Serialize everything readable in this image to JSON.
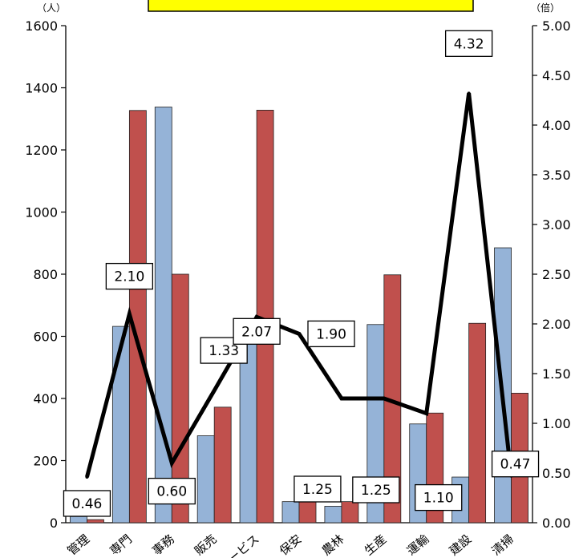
{
  "chart_data": {
    "type": "bar",
    "title": "",
    "left_axis": {
      "unit": "（人）",
      "min": 0,
      "max": 1600,
      "step": 200,
      "ticks": [
        "0",
        "200",
        "400",
        "600",
        "800",
        "1000",
        "1200",
        "1400",
        "1600"
      ]
    },
    "right_axis": {
      "unit": "（倍）",
      "min": 0,
      "max": 5,
      "step": 0.5,
      "ticks": [
        "0.00",
        "0.50",
        "1.00",
        "1.50",
        "2.00",
        "2.50",
        "3.00",
        "3.50",
        "4.00",
        "4.50",
        "5.00"
      ]
    },
    "categories": [
      "管理",
      "専門",
      "事務",
      "販売",
      "サービス",
      "保安",
      "農林",
      "生産",
      "運輸",
      "建設",
      "清掃"
    ],
    "series": [
      {
        "type": "bar",
        "axis": "left",
        "color": "#95B3D7",
        "values": [
          20,
          632,
          1338,
          280,
          641,
          68,
          53,
          638,
          318,
          147,
          885
        ]
      },
      {
        "type": "bar",
        "axis": "left",
        "color": "#C0504D",
        "values": [
          10,
          1327,
          800,
          372,
          1328,
          133,
          68,
          798,
          353,
          642,
          417
        ]
      },
      {
        "type": "line",
        "axis": "right",
        "color": "#000000",
        "values": [
          0.46,
          2.1,
          0.6,
          1.33,
          2.07,
          1.9,
          1.25,
          1.25,
          1.1,
          4.32,
          0.47
        ],
        "labels": [
          "0.46",
          "2.10",
          "0.60",
          "1.33",
          "2.07",
          "1.90",
          "1.25",
          "1.25",
          "1.10",
          "4.32",
          "0.47"
        ]
      }
    ],
    "grid": false,
    "legend": "none"
  }
}
